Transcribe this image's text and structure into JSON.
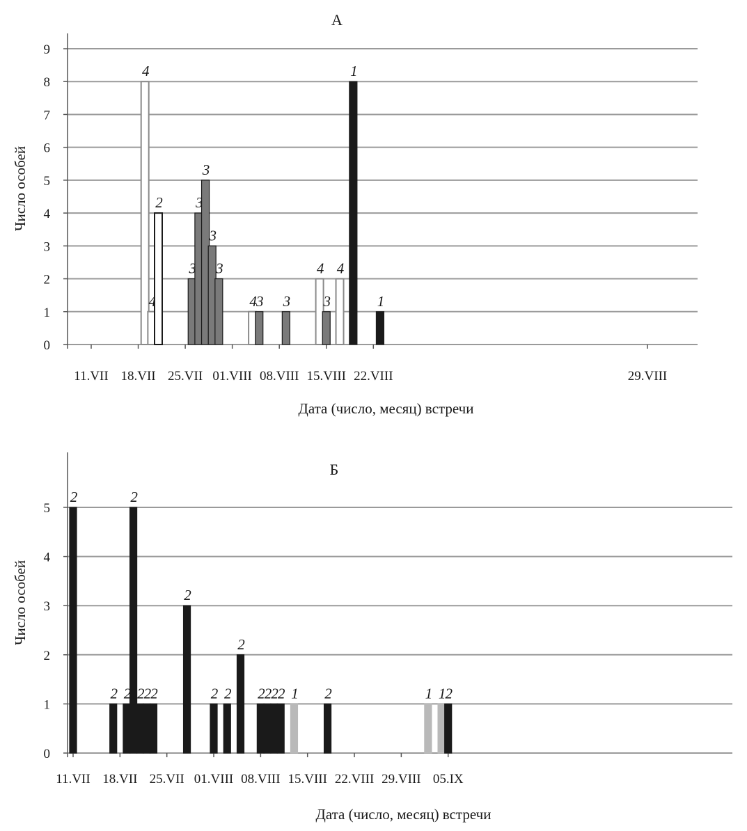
{
  "chart_data": [
    {
      "type": "bar",
      "title": "А",
      "xlabel": "Дата (число, месяц) встречи",
      "ylabel": "Число особей",
      "ylim": [
        0,
        9
      ],
      "yticks": [
        "0",
        "1",
        "2",
        "3",
        "4",
        "5",
        "6",
        "7",
        "8",
        "9"
      ],
      "x_tick_labels": [
        "11.VII",
        "18.VII",
        "25.VII",
        "01.VIII",
        "08.VIII",
        "15.VIII",
        "22.VIII",
        "29.VIII"
      ],
      "grid": "horizontal",
      "colors": {
        "1": "#1a1a1a",
        "2": "#ffffff",
        "3": "#7a7a7a",
        "4": "#ffffff"
      },
      "bars": [
        {
          "date": "19.VII",
          "value": 8,
          "group": "4"
        },
        {
          "date": "20.VII",
          "value": 1,
          "group": "4"
        },
        {
          "date": "21.VII",
          "value": 4,
          "group": "2"
        },
        {
          "date": "26.VII",
          "value": 2,
          "group": "3"
        },
        {
          "date": "27.VII",
          "value": 4,
          "group": "3"
        },
        {
          "date": "28.VII",
          "value": 5,
          "group": "3"
        },
        {
          "date": "29.VII",
          "value": 3,
          "group": "3"
        },
        {
          "date": "30.VII",
          "value": 2,
          "group": "3"
        },
        {
          "date": "04.VIII",
          "value": 1,
          "group": "4"
        },
        {
          "date": "05.VIII",
          "value": 1,
          "group": "3"
        },
        {
          "date": "09.VIII",
          "value": 1,
          "group": "3"
        },
        {
          "date": "14.VIII",
          "value": 2,
          "group": "4"
        },
        {
          "date": "15.VIII",
          "value": 1,
          "group": "3"
        },
        {
          "date": "17.VIII",
          "value": 2,
          "group": "4"
        },
        {
          "date": "19.VIII",
          "value": 8,
          "group": "1"
        },
        {
          "date": "23.VIII",
          "value": 1,
          "group": "1"
        }
      ]
    },
    {
      "type": "bar",
      "title": "Б",
      "xlabel": "Дата (число, месяц) встречи",
      "ylabel": "Число особей",
      "ylim": [
        0,
        5
      ],
      "yticks": [
        "0",
        "1",
        "2",
        "3",
        "4",
        "5"
      ],
      "x_tick_labels": [
        "11.VII",
        "18.VII",
        "25.VII",
        "01.VIII",
        "08.VIII",
        "15.VIII",
        "22.VIII",
        "29.VIII",
        "05.IX"
      ],
      "grid": "horizontal",
      "colors": {
        "1": "#b9b9b9",
        "2": "#1a1a1a"
      },
      "bars": [
        {
          "date": "11.VII",
          "value": 5,
          "group": "2"
        },
        {
          "date": "17.VII",
          "value": 1,
          "group": "2"
        },
        {
          "date": "19.VII",
          "value": 1,
          "group": "2"
        },
        {
          "date": "20.VII",
          "value": 5,
          "group": "2"
        },
        {
          "date": "21.VII",
          "value": 1,
          "group": "2"
        },
        {
          "date": "22.VII",
          "value": 1,
          "group": "2"
        },
        {
          "date": "23.VII",
          "value": 1,
          "group": "2"
        },
        {
          "date": "28.VII",
          "value": 3,
          "group": "2"
        },
        {
          "date": "01.VIII",
          "value": 1,
          "group": "2"
        },
        {
          "date": "03.VIII",
          "value": 1,
          "group": "2"
        },
        {
          "date": "05.VIII",
          "value": 2,
          "group": "2"
        },
        {
          "date": "08.VIII",
          "value": 1,
          "group": "2"
        },
        {
          "date": "09.VIII",
          "value": 1,
          "group": "2"
        },
        {
          "date": "10.VIII",
          "value": 1,
          "group": "2"
        },
        {
          "date": "11.VIII",
          "value": 1,
          "group": "2"
        },
        {
          "date": "13.VIII",
          "value": 1,
          "group": "1"
        },
        {
          "date": "18.VIII",
          "value": 1,
          "group": "2"
        },
        {
          "date": "02.IX",
          "value": 1,
          "group": "1"
        },
        {
          "date": "04.IX",
          "value": 1,
          "group": "1"
        },
        {
          "date": "05.IX",
          "value": 1,
          "group": "2"
        }
      ]
    }
  ]
}
